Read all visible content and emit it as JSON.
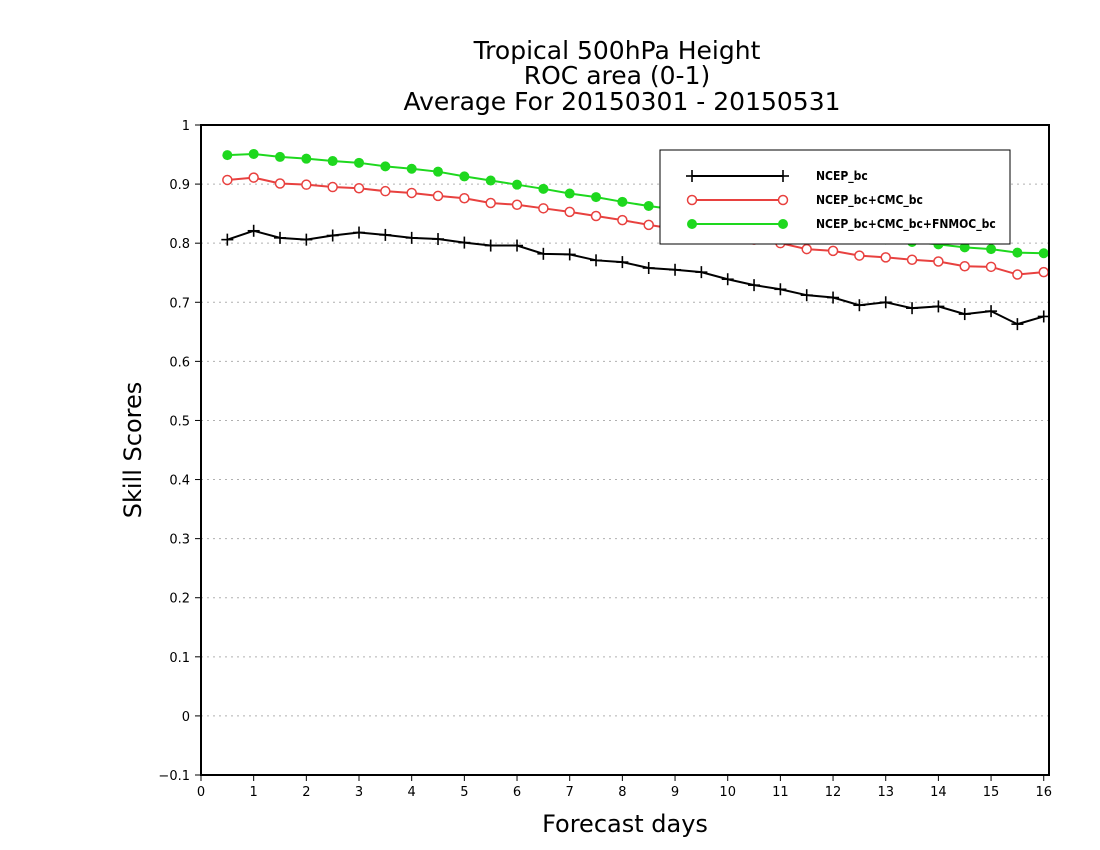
{
  "chart_data": {
    "type": "line",
    "title": [
      "Tropical 500hPa Height",
      "ROC area (0-1)",
      "Average For 20150301 - 20150531"
    ],
    "xlabel": "Forecast days",
    "ylabel": "Skill Scores",
    "xlim": [
      0,
      16.1
    ],
    "ylim": [
      -0.1,
      1
    ],
    "xticks": [
      0,
      1,
      2,
      3,
      4,
      5,
      6,
      7,
      8,
      9,
      10,
      11,
      12,
      13,
      14,
      15,
      16
    ],
    "xtick_labels": [
      "0",
      "1",
      "2",
      "3",
      "4",
      "5",
      "6",
      "7",
      "8",
      "9",
      "10",
      "11",
      "12",
      "13",
      "14",
      "15",
      "16"
    ],
    "yticks": [
      -0.1,
      0,
      0.1,
      0.2,
      0.3,
      0.4,
      0.5,
      0.6,
      0.7,
      0.8,
      0.9,
      1
    ],
    "ytick_labels": [
      "−0.1",
      "0",
      "0.1",
      "0.2",
      "0.3",
      "0.4",
      "0.5",
      "0.6",
      "0.7",
      "0.8",
      "0.9",
      "1"
    ],
    "grid": "horizontal dotted",
    "legend_position": "top-right",
    "x": [
      0.5,
      1.0,
      1.5,
      2.0,
      2.5,
      3.0,
      3.5,
      4.0,
      4.5,
      5.0,
      5.5,
      6.0,
      6.5,
      7.0,
      7.5,
      8.0,
      8.5,
      9.0,
      9.5,
      10.0,
      10.5,
      11.0,
      11.5,
      12.0,
      12.5,
      13.0,
      13.5,
      14.0,
      14.5,
      15.0,
      15.5,
      16.0
    ],
    "series": [
      {
        "name": "NCEP_bc",
        "color": "#000000",
        "marker": "plus",
        "values": [
          0.806,
          0.821,
          0.809,
          0.806,
          0.813,
          0.818,
          0.814,
          0.809,
          0.807,
          0.801,
          0.796,
          0.796,
          0.782,
          0.781,
          0.771,
          0.768,
          0.758,
          0.755,
          0.751,
          0.739,
          0.729,
          0.722,
          0.712,
          0.708,
          0.695,
          0.7,
          0.69,
          0.693,
          0.68,
          0.685,
          0.663,
          0.676
        ]
      },
      {
        "name": "NCEP_bc+CMC_bc",
        "color": "#e8413f",
        "marker": "open-circle",
        "values": [
          0.907,
          0.911,
          0.901,
          0.899,
          0.895,
          0.893,
          0.888,
          0.885,
          0.88,
          0.876,
          0.868,
          0.865,
          0.859,
          0.853,
          0.846,
          0.839,
          0.831,
          0.824,
          0.818,
          0.812,
          0.806,
          0.8,
          0.79,
          0.787,
          0.779,
          0.776,
          0.772,
          0.769,
          0.761,
          0.76,
          0.747,
          0.751
        ]
      },
      {
        "name": "NCEP_bc+CMC_bc+FNMOC_bc",
        "color": "#1ed81e",
        "marker": "filled-circle",
        "values": [
          0.949,
          0.951,
          0.946,
          0.943,
          0.939,
          0.936,
          0.93,
          0.926,
          0.921,
          0.913,
          0.906,
          0.899,
          0.892,
          0.884,
          0.878,
          0.87,
          0.863,
          0.857,
          0.85,
          0.843,
          0.836,
          0.829,
          0.823,
          0.817,
          0.811,
          0.806,
          0.802,
          0.798,
          0.793,
          0.79,
          0.784,
          0.783
        ]
      }
    ]
  }
}
